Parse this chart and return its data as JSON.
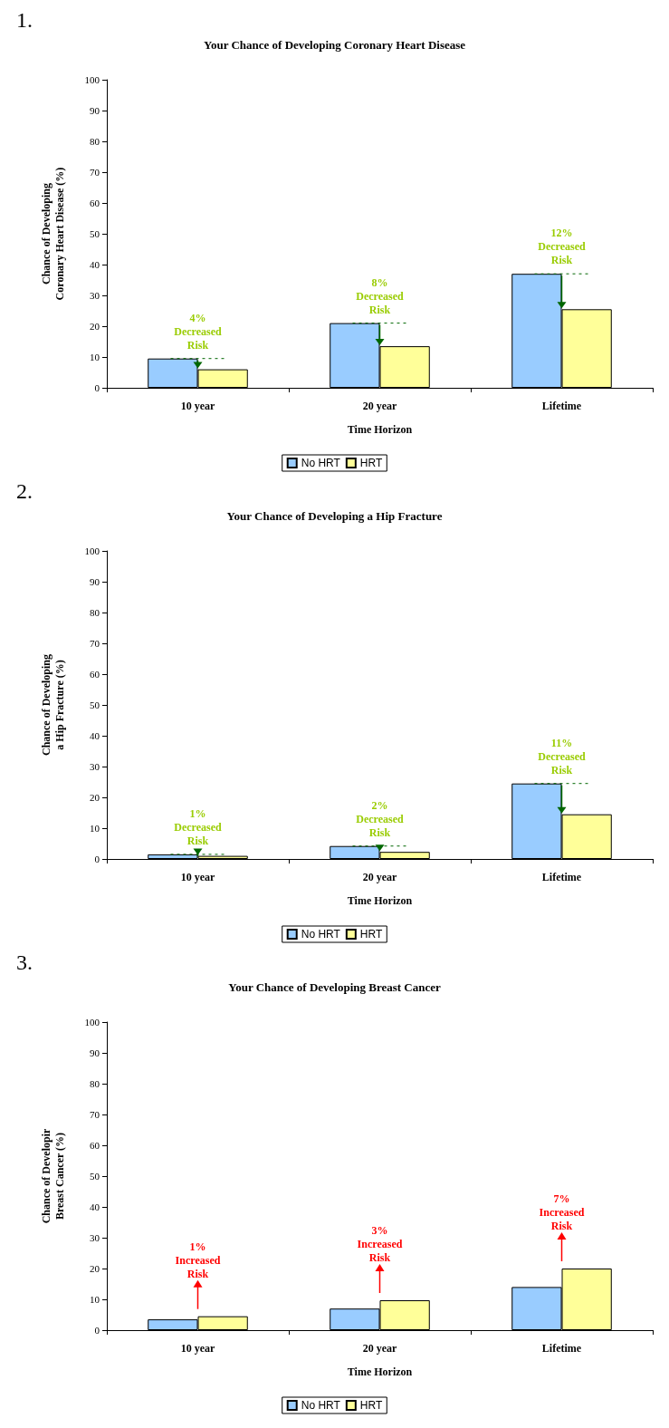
{
  "chart_data": [
    {
      "type": "bar",
      "title": "Your Chance of Developing Coronary Heart Disease",
      "xlabel": "Time Horizon",
      "ylabel": "Chance of Developing\nCoronary Heart Disease (%)",
      "categories": [
        "10 year",
        "20 year",
        "Lifetime"
      ],
      "series": [
        {
          "name": "No HRT",
          "color": "#99ccff",
          "values": [
            9.5,
            21,
            37
          ]
        },
        {
          "name": "HRT",
          "color": "#ffff99",
          "values": [
            6,
            13.5,
            25.5
          ]
        }
      ],
      "ylim": [
        0,
        100
      ],
      "yticks": [
        0,
        10,
        20,
        30,
        40,
        50,
        60,
        70,
        80,
        90,
        100
      ],
      "grid": false,
      "legend": "bottom",
      "annotations": [
        "1.",
        "4%\nDecreased\nRisk",
        "8%\nDecreased\nRisk",
        "12%\nDecreased\nRisk"
      ]
    },
    {
      "type": "bar",
      "title": "Your Chance of Developing a Hip Fracture",
      "xlabel": "Time Horizon",
      "ylabel": "Chance of Developing\na Hip Fracture (%)",
      "categories": [
        "10 year",
        "20 year",
        "Lifetime"
      ],
      "series": [
        {
          "name": "No HRT",
          "color": "#99ccff",
          "values": [
            1.5,
            4.2,
            24.5
          ]
        },
        {
          "name": "HRT",
          "color": "#ffff99",
          "values": [
            1,
            2.3,
            14.5
          ]
        }
      ],
      "ylim": [
        0,
        100
      ],
      "yticks": [
        0,
        10,
        20,
        30,
        40,
        50,
        60,
        70,
        80,
        90,
        100
      ],
      "grid": false,
      "legend": "bottom",
      "annotations": [
        "2.",
        "1%\nDecreased\nRisk",
        "2%\nDecreased\nRisk",
        "11%\nDecreased\nRisk"
      ]
    },
    {
      "type": "bar",
      "title": "Your Chance of Developing Breast Cancer",
      "xlabel": "Time Horizon",
      "ylabel": "Chance of Developir\nBreast Cancer (%)",
      "categories": [
        "10 year",
        "20 year",
        "Lifetime"
      ],
      "series": [
        {
          "name": "No HRT",
          "color": "#99ccff",
          "values": [
            3.5,
            7,
            14
          ]
        },
        {
          "name": "HRT",
          "color": "#ffff99",
          "values": [
            4.5,
            9.7,
            20
          ]
        }
      ],
      "ylim": [
        0,
        100
      ],
      "yticks": [
        0,
        10,
        20,
        30,
        40,
        50,
        60,
        70,
        80,
        90,
        100
      ],
      "grid": false,
      "legend": "bottom",
      "annotations": [
        "3.",
        "1%\nIncreased\nRisk",
        "3%\nIncreased\nRisk",
        "7%\nIncreased\nRisk"
      ]
    }
  ]
}
